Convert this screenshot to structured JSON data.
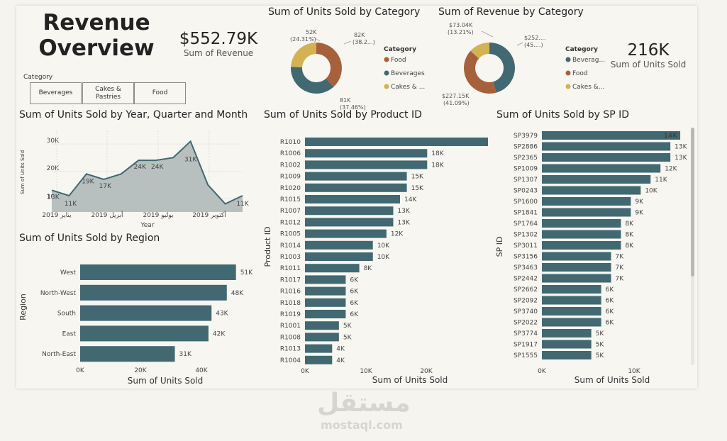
{
  "header": {
    "title_line1": "Revenue",
    "title_line2": "Overview"
  },
  "kpi_revenue": {
    "value": "$552.79K",
    "label": "Sum of Revenue"
  },
  "kpi_units": {
    "value": "216K",
    "label": "Sum of Units Sold"
  },
  "slicer": {
    "label": "Category",
    "options": [
      "Beverages",
      "Cakes & Pastries",
      "Food"
    ]
  },
  "colors": {
    "bar": "#426871",
    "area": "#b7c0bf",
    "line": "#426871",
    "food": "#a7603c",
    "beverages": "#426871",
    "cakes": "#d3b253",
    "bg": "#f7f6f1"
  },
  "charts": {
    "units_by_category": {
      "title": "Sum of Units Sold by Category",
      "legend_title": "Category",
      "legend": [
        "Food",
        "Beverages",
        "Cakes & ..."
      ],
      "labels": {
        "food": [
          "82K",
          "(38.2...)"
        ],
        "beverages": [
          "81K",
          "(37.46%)"
        ],
        "cakes": [
          "52K",
          "(24.31%)"
        ]
      }
    },
    "revenue_by_category": {
      "title": "Sum of Revenue by Category",
      "legend_title": "Category",
      "legend": [
        "Beverag...",
        "Food",
        "Cakes &..."
      ],
      "labels": {
        "beverages": [
          "$252....",
          "(45....)"
        ],
        "food": [
          "$227.15K",
          "(41.09%)"
        ],
        "cakes": [
          "$73.04K",
          "(13.21%)"
        ]
      }
    },
    "units_by_time": {
      "title": "Sum of Units Sold by Year, Quarter and Month",
      "ylabel": "Sum of Units Sold",
      "xlabel": "Year",
      "yticks": [
        "10K",
        "20K",
        "30K"
      ],
      "xticks": [
        "يناير 2019",
        "أبريل 2019",
        "يوليو 2019",
        "أكتوبر 2019"
      ],
      "point_labels": [
        "13K",
        "11K",
        "19K",
        "17K",
        "24K",
        "24K",
        "31K",
        "11K"
      ]
    },
    "units_by_region": {
      "title": "Sum of Units Sold by Region",
      "ylabel": "Region",
      "xlabel": "Sum of Units Sold",
      "xticks": [
        "0K",
        "20K",
        "40K"
      ]
    },
    "units_by_product": {
      "title": "Sum of Units Sold by Product ID",
      "ylabel": "Product ID",
      "xlabel": "Sum of Units Sold",
      "xticks": [
        "0K",
        "10K",
        "20K"
      ]
    },
    "units_by_sp": {
      "title": "Sum of Units Sold by SP ID",
      "ylabel": "SP ID",
      "xlabel": "Sum of Units Sold",
      "xticks": [
        "0K",
        "10K"
      ]
    }
  },
  "chart_data": [
    {
      "type": "pie",
      "title": "Sum of Units Sold by Category",
      "categories": [
        "Food",
        "Beverages",
        "Cakes & Pastries"
      ],
      "values": [
        82,
        81,
        52
      ],
      "percent": [
        38.2,
        37.46,
        24.31
      ],
      "unit": "K"
    },
    {
      "type": "pie",
      "title": "Sum of Revenue by Category",
      "categories": [
        "Beverages",
        "Food",
        "Cakes & Pastries"
      ],
      "values": [
        252.6,
        227.15,
        73.04
      ],
      "percent": [
        45.7,
        41.09,
        13.21
      ],
      "unit": "$K"
    },
    {
      "type": "area",
      "title": "Sum of Units Sold by Year, Quarter and Month",
      "x": [
        "2019-01",
        "2019-02",
        "2019-03",
        "2019-04",
        "2019-05",
        "2019-06",
        "2019-07",
        "2019-08",
        "2019-09",
        "2019-10",
        "2019-11",
        "2019-12"
      ],
      "values": [
        13,
        11,
        19,
        17,
        19,
        24,
        24,
        25,
        31,
        15,
        8,
        11
      ],
      "xlabel": "Year",
      "ylabel": "Sum of Units Sold",
      "ylim": [
        5,
        35
      ],
      "unit": "K"
    },
    {
      "type": "bar",
      "orientation": "horizontal",
      "title": "Sum of Units Sold by Region",
      "categories": [
        "West",
        "North-West",
        "South",
        "East",
        "North-East"
      ],
      "values": [
        51,
        48,
        43,
        42,
        31
      ],
      "xlim": [
        0,
        52
      ],
      "unit": "K"
    },
    {
      "type": "bar",
      "orientation": "horizontal",
      "title": "Sum of Units Sold by Product ID",
      "categories": [
        "R1010",
        "R1006",
        "R1002",
        "R1009",
        "R1020",
        "R1015",
        "R1007",
        "R1012",
        "R1005",
        "R1014",
        "R1003",
        "R1011",
        "R1017",
        "R1016",
        "R1018",
        "R1019",
        "R1001",
        "R1008",
        "R1013",
        "R1004"
      ],
      "values": [
        27,
        18,
        18,
        15,
        15,
        14,
        13,
        13,
        12,
        10,
        10,
        8,
        6,
        6,
        6,
        6,
        5,
        5,
        4,
        4
      ],
      "xlim": [
        0,
        28
      ],
      "unit": "K"
    },
    {
      "type": "bar",
      "orientation": "horizontal",
      "title": "Sum of Units Sold by SP ID",
      "categories": [
        "SP3979",
        "SP2886",
        "SP2365",
        "SP1009",
        "SP1307",
        "SP0243",
        "SP1600",
        "SP1841",
        "SP1764",
        "SP1302",
        "SP3011",
        "SP3156",
        "SP3463",
        "SP2442",
        "SP2662",
        "SP2092",
        "SP3740",
        "SP2022",
        "SP3774",
        "SP1917",
        "SP1555"
      ],
      "values": [
        14,
        13,
        13,
        12,
        11,
        10,
        9,
        9,
        8,
        8,
        8,
        7,
        7,
        7,
        6,
        6,
        6,
        6,
        5,
        5,
        5
      ],
      "xlim": [
        0,
        15
      ],
      "unit": "K"
    }
  ],
  "watermark": {
    "arabic": "مستقل",
    "latin": "mostaql.com"
  }
}
